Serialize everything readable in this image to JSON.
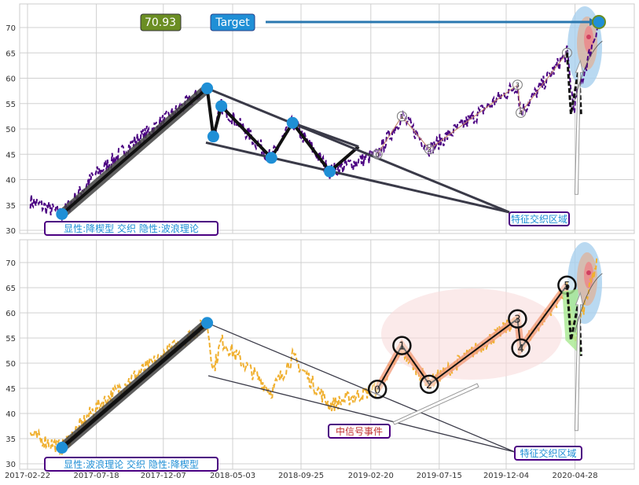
{
  "chart_data": [
    {
      "type": "line",
      "panel": "top",
      "series_color": "#4b0082",
      "ylim": [
        29.5,
        74
      ],
      "yticks": [
        30,
        35,
        40,
        45,
        50,
        55,
        60,
        65,
        70
      ],
      "grid": true,
      "price_path": [
        [
          "2017-02-28",
          35.8
        ],
        [
          "2017-05-06",
          33.2
        ],
        [
          "2017-07-10",
          40.5
        ],
        [
          "2017-10-01",
          47
        ],
        [
          "2018-03-10",
          58
        ],
        [
          "2018-03-23",
          48.5
        ],
        [
          "2018-04-09",
          54.5
        ],
        [
          "2018-07-24",
          44.3
        ],
        [
          "2018-09-07",
          51.2
        ],
        [
          "2018-11-25",
          41.6
        ],
        [
          "2019-03-06",
          45
        ],
        [
          "2019-04-27",
          52.5
        ],
        [
          "2019-06-24",
          46
        ],
        [
          "2019-12-28",
          58.7
        ],
        [
          "2020-01-04",
          53.2
        ],
        [
          "2020-04-11",
          65
        ],
        [
          "2020-04-25",
          54
        ],
        [
          "2020-06-17",
          71
        ]
      ],
      "pattern_points": [
        [
          "2017-05-06",
          33.2
        ],
        [
          "2018-03-10",
          58
        ],
        [
          "2018-03-23",
          48.5
        ],
        [
          "2018-04-09",
          54.5
        ],
        [
          "2018-07-24",
          44.3
        ],
        [
          "2018-09-07",
          51.2
        ],
        [
          "2018-11-25",
          41.6
        ],
        [
          "2019-01-25",
          46.5
        ]
      ],
      "wave_labels": [
        {
          "label": "0",
          "date": "2019-03-06",
          "value": 45
        },
        {
          "label": "1",
          "date": "2019-04-27",
          "value": 52.5
        },
        {
          "label": "2",
          "date": "2019-06-24",
          "value": 46
        },
        {
          "label": "3",
          "date": "2019-12-28",
          "value": 58.7
        },
        {
          "label": "4",
          "date": "2020-01-04",
          "value": 53.2
        },
        {
          "label": "5",
          "date": "2020-04-11",
          "value": 65
        }
      ],
      "annotations": {
        "price_value": "70.93",
        "target_label": "Target",
        "corner_label": "显性:降楔型 交织 隐性:波浪理论",
        "zone_label": "特征交织区域"
      },
      "colors": {
        "price_box": "#6b8e23",
        "target_box": "#1f8fd6",
        "marker": "#1f8fd6"
      }
    },
    {
      "type": "line",
      "panel": "bottom",
      "series_color": "#f0b030",
      "ylim": [
        29.5,
        74
      ],
      "yticks": [
        30,
        35,
        40,
        45,
        50,
        55,
        60,
        65,
        70
      ],
      "grid": true,
      "xticks": [
        "2017-02-22",
        "2017-07-18",
        "2017-12-07",
        "2018-05-03",
        "2018-09-25",
        "2019-02-20",
        "2019-07-15",
        "2019-12-04",
        "2020-04-28"
      ],
      "pattern_points": [
        [
          "2017-05-06",
          33.2
        ],
        [
          "2018-03-10",
          58
        ]
      ],
      "wave_labels": [
        {
          "label": "0",
          "date": "2019-03-06",
          "value": 44.8
        },
        {
          "label": "1",
          "date": "2019-04-27",
          "value": 53.5
        },
        {
          "label": "2",
          "date": "2019-06-24",
          "value": 45.8
        },
        {
          "label": "3",
          "date": "2019-12-28",
          "value": 58.8
        },
        {
          "label": "4",
          "date": "2020-01-04",
          "value": 53
        },
        {
          "label": "5",
          "date": "2020-04-11",
          "value": 65.5
        }
      ],
      "annotations": {
        "corner_label": "显性:波浪理论 交织 隐性:降楔型",
        "signal_label": "中信号事件",
        "zone_label": "特征交织区域"
      }
    }
  ]
}
